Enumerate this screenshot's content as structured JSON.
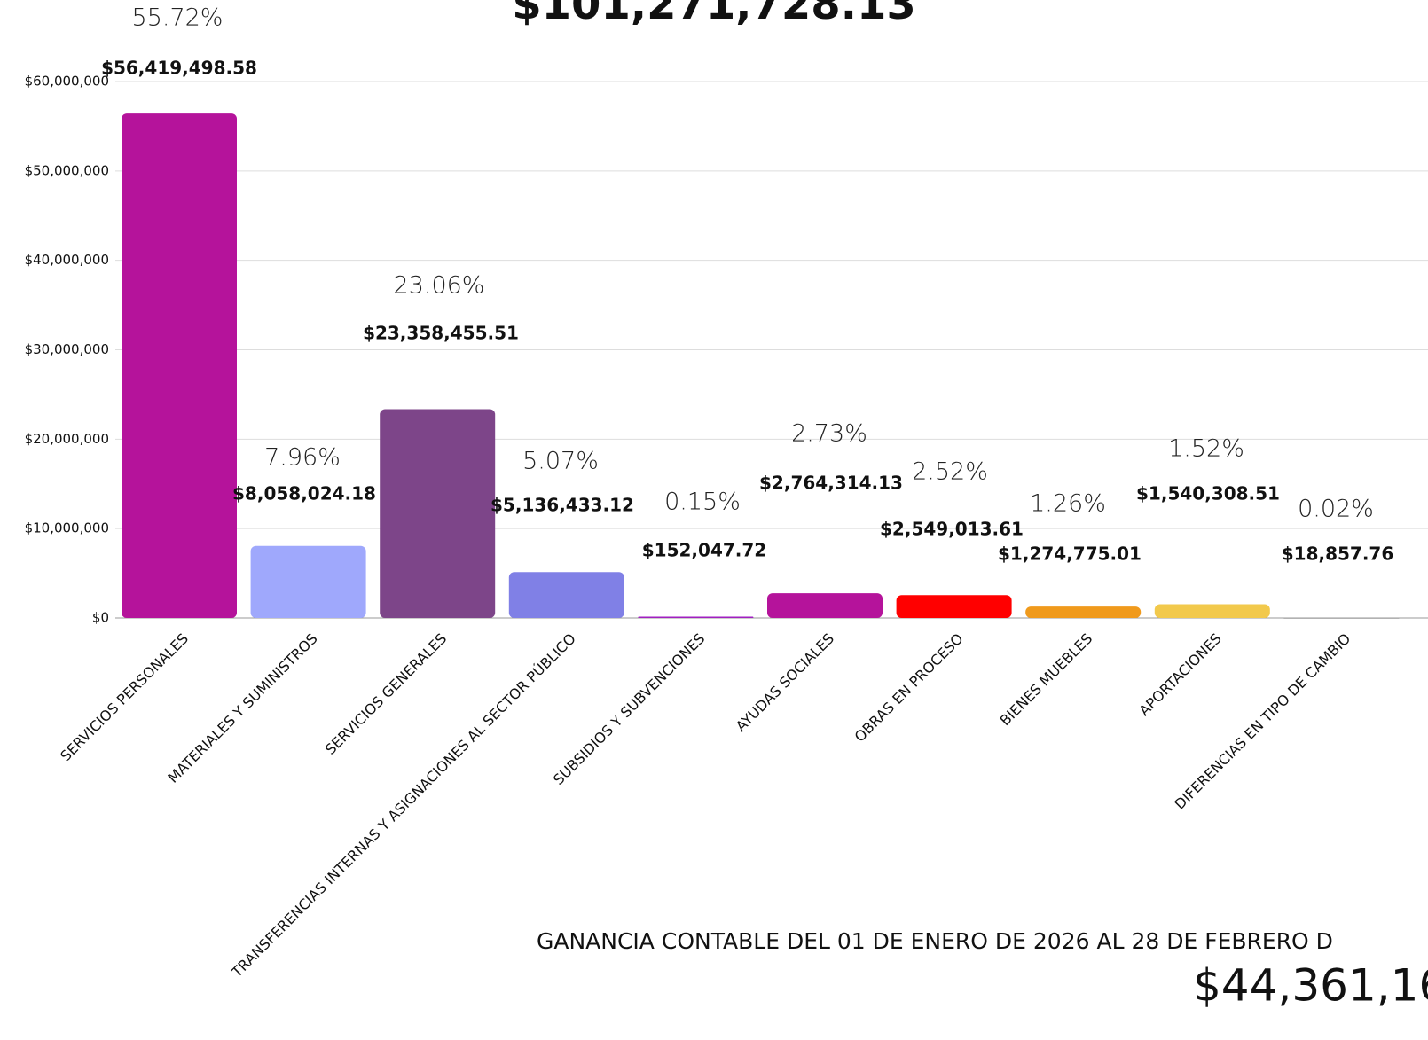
{
  "chart_data": {
    "type": "bar",
    "title": "$101,271,728.13",
    "categories": [
      "SERVICIOS PERSONALES",
      "MATERIALES Y SUMINISTROS",
      "SERVICIOS GENERALES",
      "TRANSFERENCIAS INTERNAS Y ASIGNACIONES AL SECTOR PÚBLICO",
      "SUBSIDIOS Y SUBVENCIONES",
      "AYUDAS SOCIALES",
      "OBRAS EN PROCESO",
      "BIENES MUEBLES",
      "APORTACIONES",
      "DIFERENCIAS EN TIPO DE CAMBIO"
    ],
    "values": [
      56419498.58,
      8058024.18,
      23358455.51,
      5136433.12,
      152047.72,
      2764314.13,
      2549013.61,
      1274775.01,
      1540308.51,
      18857.76
    ],
    "value_labels": [
      "$56,419,498.58",
      "$8,058,024.18",
      "$23,358,455.51",
      "$5,136,433.12",
      "$152,047.72",
      "$2,764,314.13",
      "$2,549,013.61",
      "$1,274,775.01",
      "$1,540,308.51",
      "$18,857.76"
    ],
    "percentages": [
      "55.72%",
      "7.96%",
      "23.06%",
      "5.07%",
      "0.15%",
      "2.73%",
      "2.52%",
      "1.26%",
      "1.52%",
      "0.02%"
    ],
    "colors": [
      "#b5139b",
      "#9fa8fc",
      "#7d4589",
      "#8080e6",
      "#a020c0",
      "#b5139b",
      "#ff0000",
      "#f09a1c",
      "#f2c94c",
      "#999999"
    ],
    "ylim": [
      0,
      60000000
    ],
    "yticks": [
      {
        "value": 0,
        "label": "$0"
      },
      {
        "value": 10000000,
        "label": "$10,000,000"
      },
      {
        "value": 20000000,
        "label": "$20,000,000"
      },
      {
        "value": 30000000,
        "label": "$30,000,000"
      },
      {
        "value": 40000000,
        "label": "$40,000,000"
      },
      {
        "value": 50000000,
        "label": "$50,000,000"
      },
      {
        "value": 60000000,
        "label": "$60,000,000"
      }
    ],
    "grid": true,
    "annotations": [
      "GANANCIA CONTABLE DEL 01 DE ENERO DE 2026 AL 28 DE FEBRERO D",
      "$44,361,16"
    ]
  }
}
